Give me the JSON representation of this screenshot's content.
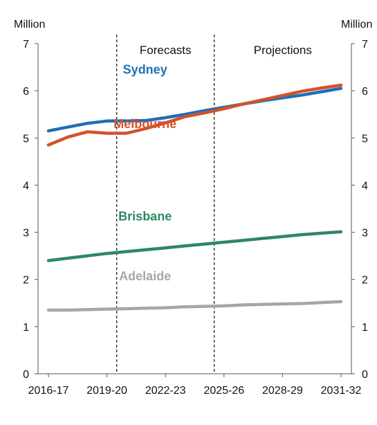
{
  "chart_data": {
    "type": "line",
    "title": "",
    "xlabel": "",
    "ylabel": "Million",
    "ylabel_right": "Million",
    "ylim": [
      0,
      7
    ],
    "yticks": [
      0,
      1,
      2,
      3,
      4,
      5,
      6,
      7
    ],
    "x": [
      "2016-17",
      "2017-18",
      "2018-19",
      "2019-20",
      "2020-21",
      "2021-22",
      "2022-23",
      "2023-24",
      "2024-25",
      "2025-26",
      "2026-27",
      "2027-28",
      "2028-29",
      "2029-30",
      "2030-31",
      "2031-32"
    ],
    "xtick_labels": [
      "2016-17",
      "2019-20",
      "2022-23",
      "2025-26",
      "2028-29",
      "2031-32"
    ],
    "regions": [
      {
        "label": "Forecasts",
        "from": "2019-20",
        "to": "2024-25"
      },
      {
        "label": "Projections",
        "from": "2024-25",
        "to": "2031-32"
      }
    ],
    "dividers_after": [
      "2019-20",
      "2024-25"
    ],
    "series": [
      {
        "name": "Sydney",
        "color": "#1f6fb5",
        "values": [
          5.15,
          5.23,
          5.31,
          5.36,
          5.36,
          5.37,
          5.43,
          5.5,
          5.58,
          5.65,
          5.72,
          5.79,
          5.85,
          5.91,
          5.98,
          6.05
        ]
      },
      {
        "name": "Melbourne",
        "color": "#d2532b",
        "values": [
          4.85,
          5.02,
          5.13,
          5.1,
          5.1,
          5.2,
          5.32,
          5.45,
          5.53,
          5.62,
          5.72,
          5.81,
          5.9,
          5.99,
          6.06,
          6.12
        ]
      },
      {
        "name": "Brisbane",
        "color": "#2e8860",
        "values": [
          2.4,
          2.45,
          2.5,
          2.55,
          2.59,
          2.63,
          2.67,
          2.71,
          2.75,
          2.79,
          2.83,
          2.87,
          2.91,
          2.95,
          2.98,
          3.01
        ]
      },
      {
        "name": "Adelaide",
        "color": "#a6a6a6",
        "values": [
          1.35,
          1.35,
          1.36,
          1.37,
          1.38,
          1.39,
          1.4,
          1.42,
          1.43,
          1.44,
          1.46,
          1.47,
          1.48,
          1.49,
          1.51,
          1.53
        ]
      }
    ],
    "grid": false,
    "legend": "inline"
  }
}
